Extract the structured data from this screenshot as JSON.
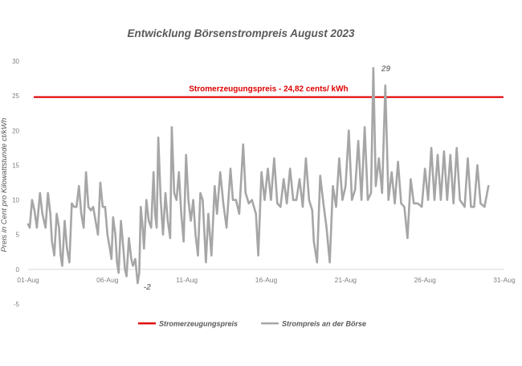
{
  "chart_data": {
    "type": "line",
    "title": "Entwicklung Börsenstrompreis August 2023",
    "ylabel": "Preis in Cent pro Kilowattstunde ct/kWh",
    "xlabel": "",
    "ylim": [
      -5,
      30
    ],
    "xlim": [
      1,
      31
    ],
    "yticks": [
      -5,
      0,
      5,
      10,
      15,
      20,
      25,
      30
    ],
    "xticks": [
      {
        "x": 1,
        "label": "01-Aug"
      },
      {
        "x": 6,
        "label": "06-Aug"
      },
      {
        "x": 11,
        "label": "11-Aug"
      },
      {
        "x": 16,
        "label": "16-Aug"
      },
      {
        "x": 21,
        "label": "21-Aug"
      },
      {
        "x": 26,
        "label": "26-Aug"
      },
      {
        "x": 31,
        "label": "31-Aug"
      }
    ],
    "grid": false,
    "legend_position": "bottom",
    "series": [
      {
        "name": "Stromerzeugungspreis",
        "color": "#e00000",
        "points": [
          [
            1.4,
            24.82
          ],
          [
            30.9,
            24.82
          ]
        ],
        "label": "Stromerzeugungspreis - 24,82 cents/ kWh"
      },
      {
        "name": "Strompreis an der Börse",
        "color": "#a6a6a6",
        "points": [
          [
            1.0,
            6.5
          ],
          [
            1.1,
            6.0
          ],
          [
            1.25,
            10.0
          ],
          [
            1.4,
            8.5
          ],
          [
            1.55,
            6.0
          ],
          [
            1.75,
            11.0
          ],
          [
            1.9,
            8.0
          ],
          [
            2.1,
            6.0
          ],
          [
            2.25,
            11.0
          ],
          [
            2.4,
            8.0
          ],
          [
            2.5,
            4.0
          ],
          [
            2.65,
            2.0
          ],
          [
            2.8,
            8.0
          ],
          [
            2.95,
            6.0
          ],
          [
            3.05,
            2.0
          ],
          [
            3.15,
            0.5
          ],
          [
            3.3,
            7.0
          ],
          [
            3.45,
            3.0
          ],
          [
            3.6,
            1.0
          ],
          [
            3.75,
            9.5
          ],
          [
            3.9,
            9.0
          ],
          [
            4.05,
            9.0
          ],
          [
            4.2,
            12.0
          ],
          [
            4.35,
            8.0
          ],
          [
            4.5,
            6.0
          ],
          [
            4.65,
            14.0
          ],
          [
            4.8,
            9.0
          ],
          [
            4.95,
            8.5
          ],
          [
            5.1,
            9.0
          ],
          [
            5.25,
            7.0
          ],
          [
            5.4,
            5.0
          ],
          [
            5.55,
            12.5
          ],
          [
            5.7,
            9.0
          ],
          [
            5.85,
            9.0
          ],
          [
            6.0,
            5.0
          ],
          [
            6.15,
            3.0
          ],
          [
            6.25,
            1.5
          ],
          [
            6.35,
            7.5
          ],
          [
            6.5,
            5.0
          ],
          [
            6.6,
            1.0
          ],
          [
            6.7,
            -0.5
          ],
          [
            6.85,
            7.0
          ],
          [
            7.0,
            3.0
          ],
          [
            7.1,
            0.0
          ],
          [
            7.2,
            -1.0
          ],
          [
            7.35,
            4.5
          ],
          [
            7.5,
            1.5
          ],
          [
            7.6,
            0.5
          ],
          [
            7.75,
            1.5
          ],
          [
            7.9,
            -2.0
          ],
          [
            8.0,
            -0.5
          ],
          [
            8.1,
            9.0
          ],
          [
            8.2,
            6.5
          ],
          [
            8.3,
            3.0
          ],
          [
            8.45,
            10.0
          ],
          [
            8.6,
            7.0
          ],
          [
            8.75,
            6.0
          ],
          [
            8.9,
            14.0
          ],
          [
            9.0,
            8.0
          ],
          [
            9.1,
            6.0
          ],
          [
            9.2,
            19.0
          ],
          [
            9.35,
            10.0
          ],
          [
            9.5,
            5.0
          ],
          [
            9.65,
            11.0
          ],
          [
            9.8,
            7.0
          ],
          [
            9.95,
            4.5
          ],
          [
            10.05,
            20.5
          ],
          [
            10.2,
            11.0
          ],
          [
            10.35,
            10.0
          ],
          [
            10.5,
            14.0
          ],
          [
            10.65,
            8.0
          ],
          [
            10.8,
            4.0
          ],
          [
            10.95,
            16.5
          ],
          [
            11.1,
            10.0
          ],
          [
            11.25,
            7.0
          ],
          [
            11.4,
            10.0
          ],
          [
            11.55,
            5.0
          ],
          [
            11.7,
            2.0
          ],
          [
            11.85,
            11.0
          ],
          [
            12.0,
            10.0
          ],
          [
            12.2,
            1.0
          ],
          [
            12.35,
            8.0
          ],
          [
            12.55,
            2.0
          ],
          [
            12.75,
            12.0
          ],
          [
            12.9,
            8.0
          ],
          [
            13.1,
            14.0
          ],
          [
            13.3,
            9.5
          ],
          [
            13.5,
            6.0
          ],
          [
            13.75,
            14.5
          ],
          [
            13.9,
            10.0
          ],
          [
            14.1,
            10.0
          ],
          [
            14.3,
            8.0
          ],
          [
            14.55,
            18.0
          ],
          [
            14.7,
            11.0
          ],
          [
            14.9,
            9.5
          ],
          [
            15.1,
            10.0
          ],
          [
            15.35,
            8.0
          ],
          [
            15.5,
            2.0
          ],
          [
            15.7,
            14.0
          ],
          [
            15.9,
            10.0
          ],
          [
            16.1,
            14.5
          ],
          [
            16.3,
            10.0
          ],
          [
            16.5,
            16.0
          ],
          [
            16.7,
            9.5
          ],
          [
            16.9,
            9.0
          ],
          [
            17.1,
            13.0
          ],
          [
            17.3,
            9.5
          ],
          [
            17.5,
            14.5
          ],
          [
            17.7,
            10.0
          ],
          [
            17.9,
            10.0
          ],
          [
            18.1,
            13.0
          ],
          [
            18.3,
            9.0
          ],
          [
            18.5,
            16.0
          ],
          [
            18.7,
            10.0
          ],
          [
            18.9,
            8.5
          ],
          [
            19.0,
            4.0
          ],
          [
            19.2,
            1.0
          ],
          [
            19.4,
            13.5
          ],
          [
            19.6,
            9.5
          ],
          [
            19.8,
            6.0
          ],
          [
            20.0,
            1.0
          ],
          [
            20.2,
            12.0
          ],
          [
            20.4,
            9.0
          ],
          [
            20.6,
            16.0
          ],
          [
            20.8,
            10.0
          ],
          [
            21.0,
            12.0
          ],
          [
            21.2,
            20.0
          ],
          [
            21.4,
            10.0
          ],
          [
            21.6,
            11.5
          ],
          [
            21.8,
            18.5
          ],
          [
            22.0,
            10.0
          ],
          [
            22.2,
            20.5
          ],
          [
            22.4,
            10.0
          ],
          [
            22.6,
            11.0
          ],
          [
            22.75,
            29.0
          ],
          [
            22.9,
            12.0
          ],
          [
            23.1,
            16.0
          ],
          [
            23.3,
            11.0
          ],
          [
            23.5,
            26.5
          ],
          [
            23.7,
            10.0
          ],
          [
            23.9,
            14.0
          ],
          [
            24.1,
            9.5
          ],
          [
            24.3,
            15.5
          ],
          [
            24.5,
            9.5
          ],
          [
            24.7,
            9.0
          ],
          [
            24.9,
            4.5
          ],
          [
            25.1,
            13.0
          ],
          [
            25.3,
            9.5
          ],
          [
            25.55,
            9.5
          ],
          [
            25.8,
            9.0
          ],
          [
            26.0,
            14.5
          ],
          [
            26.2,
            10.0
          ],
          [
            26.4,
            17.5
          ],
          [
            26.6,
            10.0
          ],
          [
            26.8,
            16.5
          ],
          [
            27.0,
            10.0
          ],
          [
            27.2,
            17.0
          ],
          [
            27.4,
            10.0
          ],
          [
            27.6,
            16.5
          ],
          [
            27.8,
            9.5
          ],
          [
            28.0,
            17.5
          ],
          [
            28.2,
            10.0
          ],
          [
            28.5,
            9.0
          ],
          [
            28.7,
            16.0
          ],
          [
            28.9,
            9.0
          ],
          [
            29.1,
            9.0
          ],
          [
            29.3,
            15.0
          ],
          [
            29.5,
            9.5
          ],
          [
            29.75,
            9.0
          ],
          [
            30.0,
            12.0
          ]
        ]
      }
    ],
    "annotations": [
      {
        "x": 22.75,
        "y": 29,
        "text": "29"
      },
      {
        "x": 7.9,
        "y": -2,
        "text": "-2"
      }
    ]
  }
}
